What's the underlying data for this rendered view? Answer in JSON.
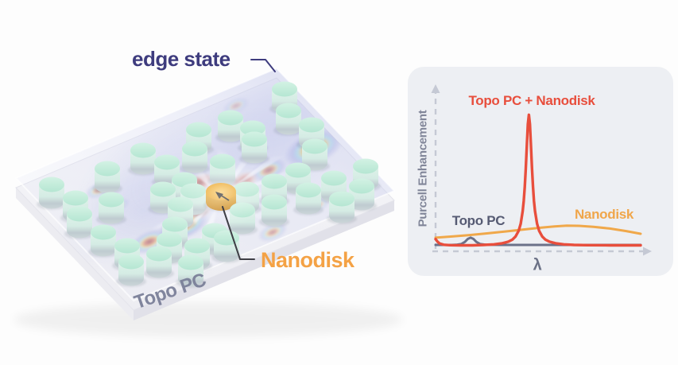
{
  "page": {
    "background": "#fdfdfd"
  },
  "illustration": {
    "edge_state_label": "edge state",
    "nanodisk_label": "Nanodisk",
    "topo_pc_label": "Topo PC",
    "colors": {
      "edge_state_text": "#3e3c7e",
      "nanodisk_text": "#f4a245",
      "topo_pc_text": "#7b8099",
      "pillar_mint_top": "#c6ecdb",
      "pillar_mint_side": "#d5ece4",
      "nanodisk_gold_top": "#f2ba52",
      "nanodisk_gold_side": "#d3942c",
      "field_hot": "#7c1a10",
      "field_warm": "#e2622c",
      "field_yellow": "#f2d23f",
      "field_cyan": "#72d7e4",
      "field_cold": "#7f8ad9",
      "slab": "#f4f4f8",
      "pointer_dark": "#3f3f46"
    }
  },
  "chart_data": {
    "type": "line",
    "title": "",
    "xlabel": "λ",
    "ylabel": "Purcell Enhancement",
    "panel_bg": "#edeff3",
    "axis_color": "#c5c9d4",
    "axis_text_color": "#818699",
    "axis_style": "dashed-arrows-no-ticks",
    "grid": false,
    "legend_position": "inline-labels",
    "xlim": [
      0,
      1
    ],
    "ylim": [
      0,
      1
    ],
    "series": [
      {
        "name": "Topo PC + Nanodisk",
        "color": "#e84e3c",
        "label_color": "#e84e3c",
        "shape": "sharp Lorentzian resonance peak",
        "points": [
          [
            0,
            0.055
          ],
          [
            0.01,
            0.035
          ],
          [
            0.02,
            0.022
          ],
          [
            0.04,
            0.013
          ],
          [
            0.07,
            0.01
          ],
          [
            0.12,
            0.009
          ],
          [
            0.18,
            0.009
          ],
          [
            0.235,
            0.012
          ],
          [
            0.285,
            0.016
          ],
          [
            0.325,
            0.024
          ],
          [
            0.355,
            0.036
          ],
          [
            0.375,
            0.052
          ],
          [
            0.39,
            0.074
          ],
          [
            0.405,
            0.116
          ],
          [
            0.415,
            0.168
          ],
          [
            0.425,
            0.262
          ],
          [
            0.43,
            0.336
          ],
          [
            0.435,
            0.44
          ],
          [
            0.44,
            0.578
          ],
          [
            0.445,
            0.745
          ],
          [
            0.45,
            0.905
          ],
          [
            0.455,
            0.975
          ],
          [
            0.46,
            0.905
          ],
          [
            0.465,
            0.745
          ],
          [
            0.47,
            0.578
          ],
          [
            0.475,
            0.44
          ],
          [
            0.48,
            0.336
          ],
          [
            0.485,
            0.262
          ],
          [
            0.495,
            0.168
          ],
          [
            0.505,
            0.116
          ],
          [
            0.52,
            0.074
          ],
          [
            0.535,
            0.052
          ],
          [
            0.555,
            0.036
          ],
          [
            0.585,
            0.024
          ],
          [
            0.625,
            0.016
          ],
          [
            0.675,
            0.012
          ],
          [
            0.74,
            0.01
          ],
          [
            0.85,
            0.009
          ],
          [
            1,
            0.009
          ]
        ]
      },
      {
        "name": "Nanodisk",
        "color": "#f0a84a",
        "label_color": "#f0a64a",
        "shape": "broad shallow resonance",
        "points": [
          [
            0,
            0.065
          ],
          [
            0.08,
            0.074
          ],
          [
            0.16,
            0.084
          ],
          [
            0.25,
            0.097
          ],
          [
            0.34,
            0.111
          ],
          [
            0.43,
            0.126
          ],
          [
            0.51,
            0.139
          ],
          [
            0.58,
            0.149
          ],
          [
            0.64,
            0.154
          ],
          [
            0.7,
            0.153
          ],
          [
            0.77,
            0.146
          ],
          [
            0.85,
            0.133
          ],
          [
            0.93,
            0.114
          ],
          [
            1,
            0.094
          ]
        ]
      },
      {
        "name": "Topo PC",
        "color": "#6b7189",
        "label_color": "#565b73",
        "shape": "near-flat baseline with small bump",
        "points": [
          [
            0,
            0.012
          ],
          [
            0.08,
            0.012
          ],
          [
            0.1,
            0.013
          ],
          [
            0.125,
            0.018
          ],
          [
            0.143,
            0.034
          ],
          [
            0.157,
            0.056
          ],
          [
            0.171,
            0.066
          ],
          [
            0.185,
            0.056
          ],
          [
            0.199,
            0.034
          ],
          [
            0.218,
            0.018
          ],
          [
            0.245,
            0.013
          ],
          [
            0.32,
            0.012
          ],
          [
            0.5,
            0.012
          ],
          [
            0.75,
            0.012
          ],
          [
            1,
            0.012
          ]
        ]
      }
    ]
  }
}
